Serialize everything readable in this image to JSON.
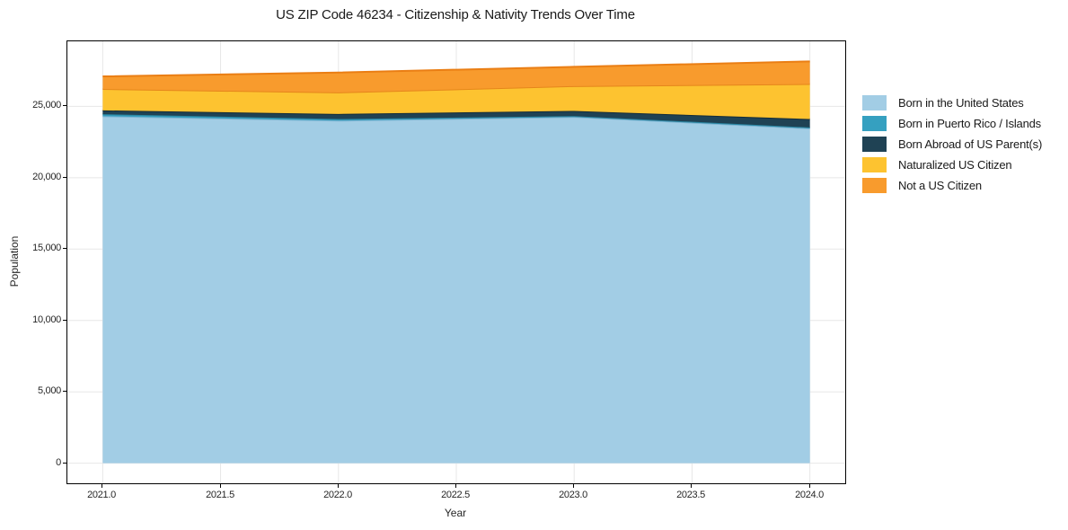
{
  "chart_data": {
    "type": "area",
    "stacked": true,
    "title": "US ZIP Code 46234 - Citizenship & Nativity Trends Over Time",
    "xlabel": "Year",
    "ylabel": "Population",
    "x": [
      2021,
      2022,
      2023,
      2024
    ],
    "series": [
      {
        "name": "Born in the United States",
        "color": "#a2cde5",
        "edge_color": "#7eb4d2",
        "values": [
          24310,
          24000,
          24260,
          23460
        ]
      },
      {
        "name": "Born in Puerto Rico / Islands",
        "color": "#35a0c0",
        "edge_color": "#2b86a2",
        "values": [
          140,
          110,
          60,
          60
        ]
      },
      {
        "name": "Born Abroad of US Parent(s)",
        "color": "#1f4254",
        "edge_color": "#142c39",
        "values": [
          270,
          360,
          360,
          590
        ]
      },
      {
        "name": "Naturalized US Citizen",
        "color": "#fdc330",
        "edge_color": "#e5861b",
        "values": [
          1500,
          1510,
          1740,
          2460
        ]
      },
      {
        "name": "Not a US Citizen",
        "color": "#f89b2d",
        "edge_color": "#ea7e14",
        "values": [
          880,
          1390,
          1350,
          1580
        ]
      }
    ],
    "stack_totals": [
      27100,
      27370,
      27770,
      28150
    ],
    "xlim": [
      2020.85,
      2024.15
    ],
    "ylim": [
      -1407,
      29557
    ],
    "xticks": {
      "values": [
        2021.0,
        2021.5,
        2022.0,
        2022.5,
        2023.0,
        2023.5,
        2024.0
      ],
      "labels": [
        "2021.0",
        "2021.5",
        "2022.0",
        "2022.5",
        "2023.0",
        "2023.5",
        "2024.0"
      ]
    },
    "yticks": {
      "values": [
        0,
        5000,
        10000,
        15000,
        20000,
        25000
      ],
      "labels": [
        "0",
        "5,000",
        "10,000",
        "15,000",
        "20,000",
        "25,000"
      ]
    },
    "grid": true,
    "grid_color": "#e7e7e7",
    "spine_color": "#000000",
    "text_color": "#262626",
    "legend_position": "right-outside",
    "legend_frame": false
  }
}
